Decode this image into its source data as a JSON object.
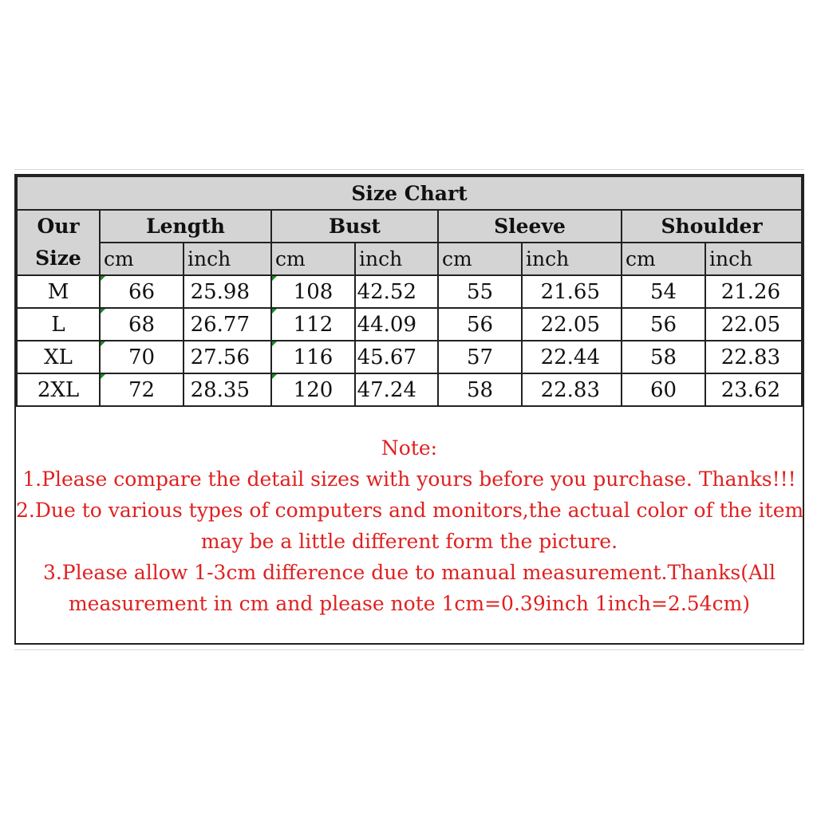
{
  "title": "Size Chart",
  "size_header": [
    "Our",
    "Size"
  ],
  "groups": [
    "Length",
    "Bust",
    "Sleeve",
    "Shoulder"
  ],
  "units": [
    "cm",
    "inch",
    "cm",
    "inch",
    "cm",
    "inch",
    "cm",
    "inch"
  ],
  "rows": [
    {
      "size": "M",
      "values": [
        "66",
        "25.98",
        "108",
        "42.52",
        "55",
        "21.65",
        "54",
        "21.26"
      ]
    },
    {
      "size": "L",
      "values": [
        "68",
        "26.77",
        "112",
        "44.09",
        "56",
        "22.05",
        "56",
        "22.05"
      ]
    },
    {
      "size": "XL",
      "values": [
        "70",
        "27.56",
        "116",
        "45.67",
        "57",
        "22.44",
        "58",
        "22.83"
      ]
    },
    {
      "size": "2XL",
      "values": [
        "72",
        "28.35",
        "120",
        "47.24",
        "58",
        "22.83",
        "60",
        "23.62"
      ]
    }
  ],
  "notes": [
    "Note:",
    "1.Please compare the detail sizes with yours before you purchase. Thanks!!!",
    "2.Due to various types of computers and monitors,the actual color of the item",
    "may be a little different form the picture.",
    "3.Please allow 1-3cm difference due to manual measurement.Thanks(All",
    "measurement in cm and please note 1cm=0.39inch 1inch=2.54cm)"
  ],
  "colors": {
    "header_bg": "#d4d4d4",
    "note_text": "#e02020",
    "border": "#222222"
  }
}
